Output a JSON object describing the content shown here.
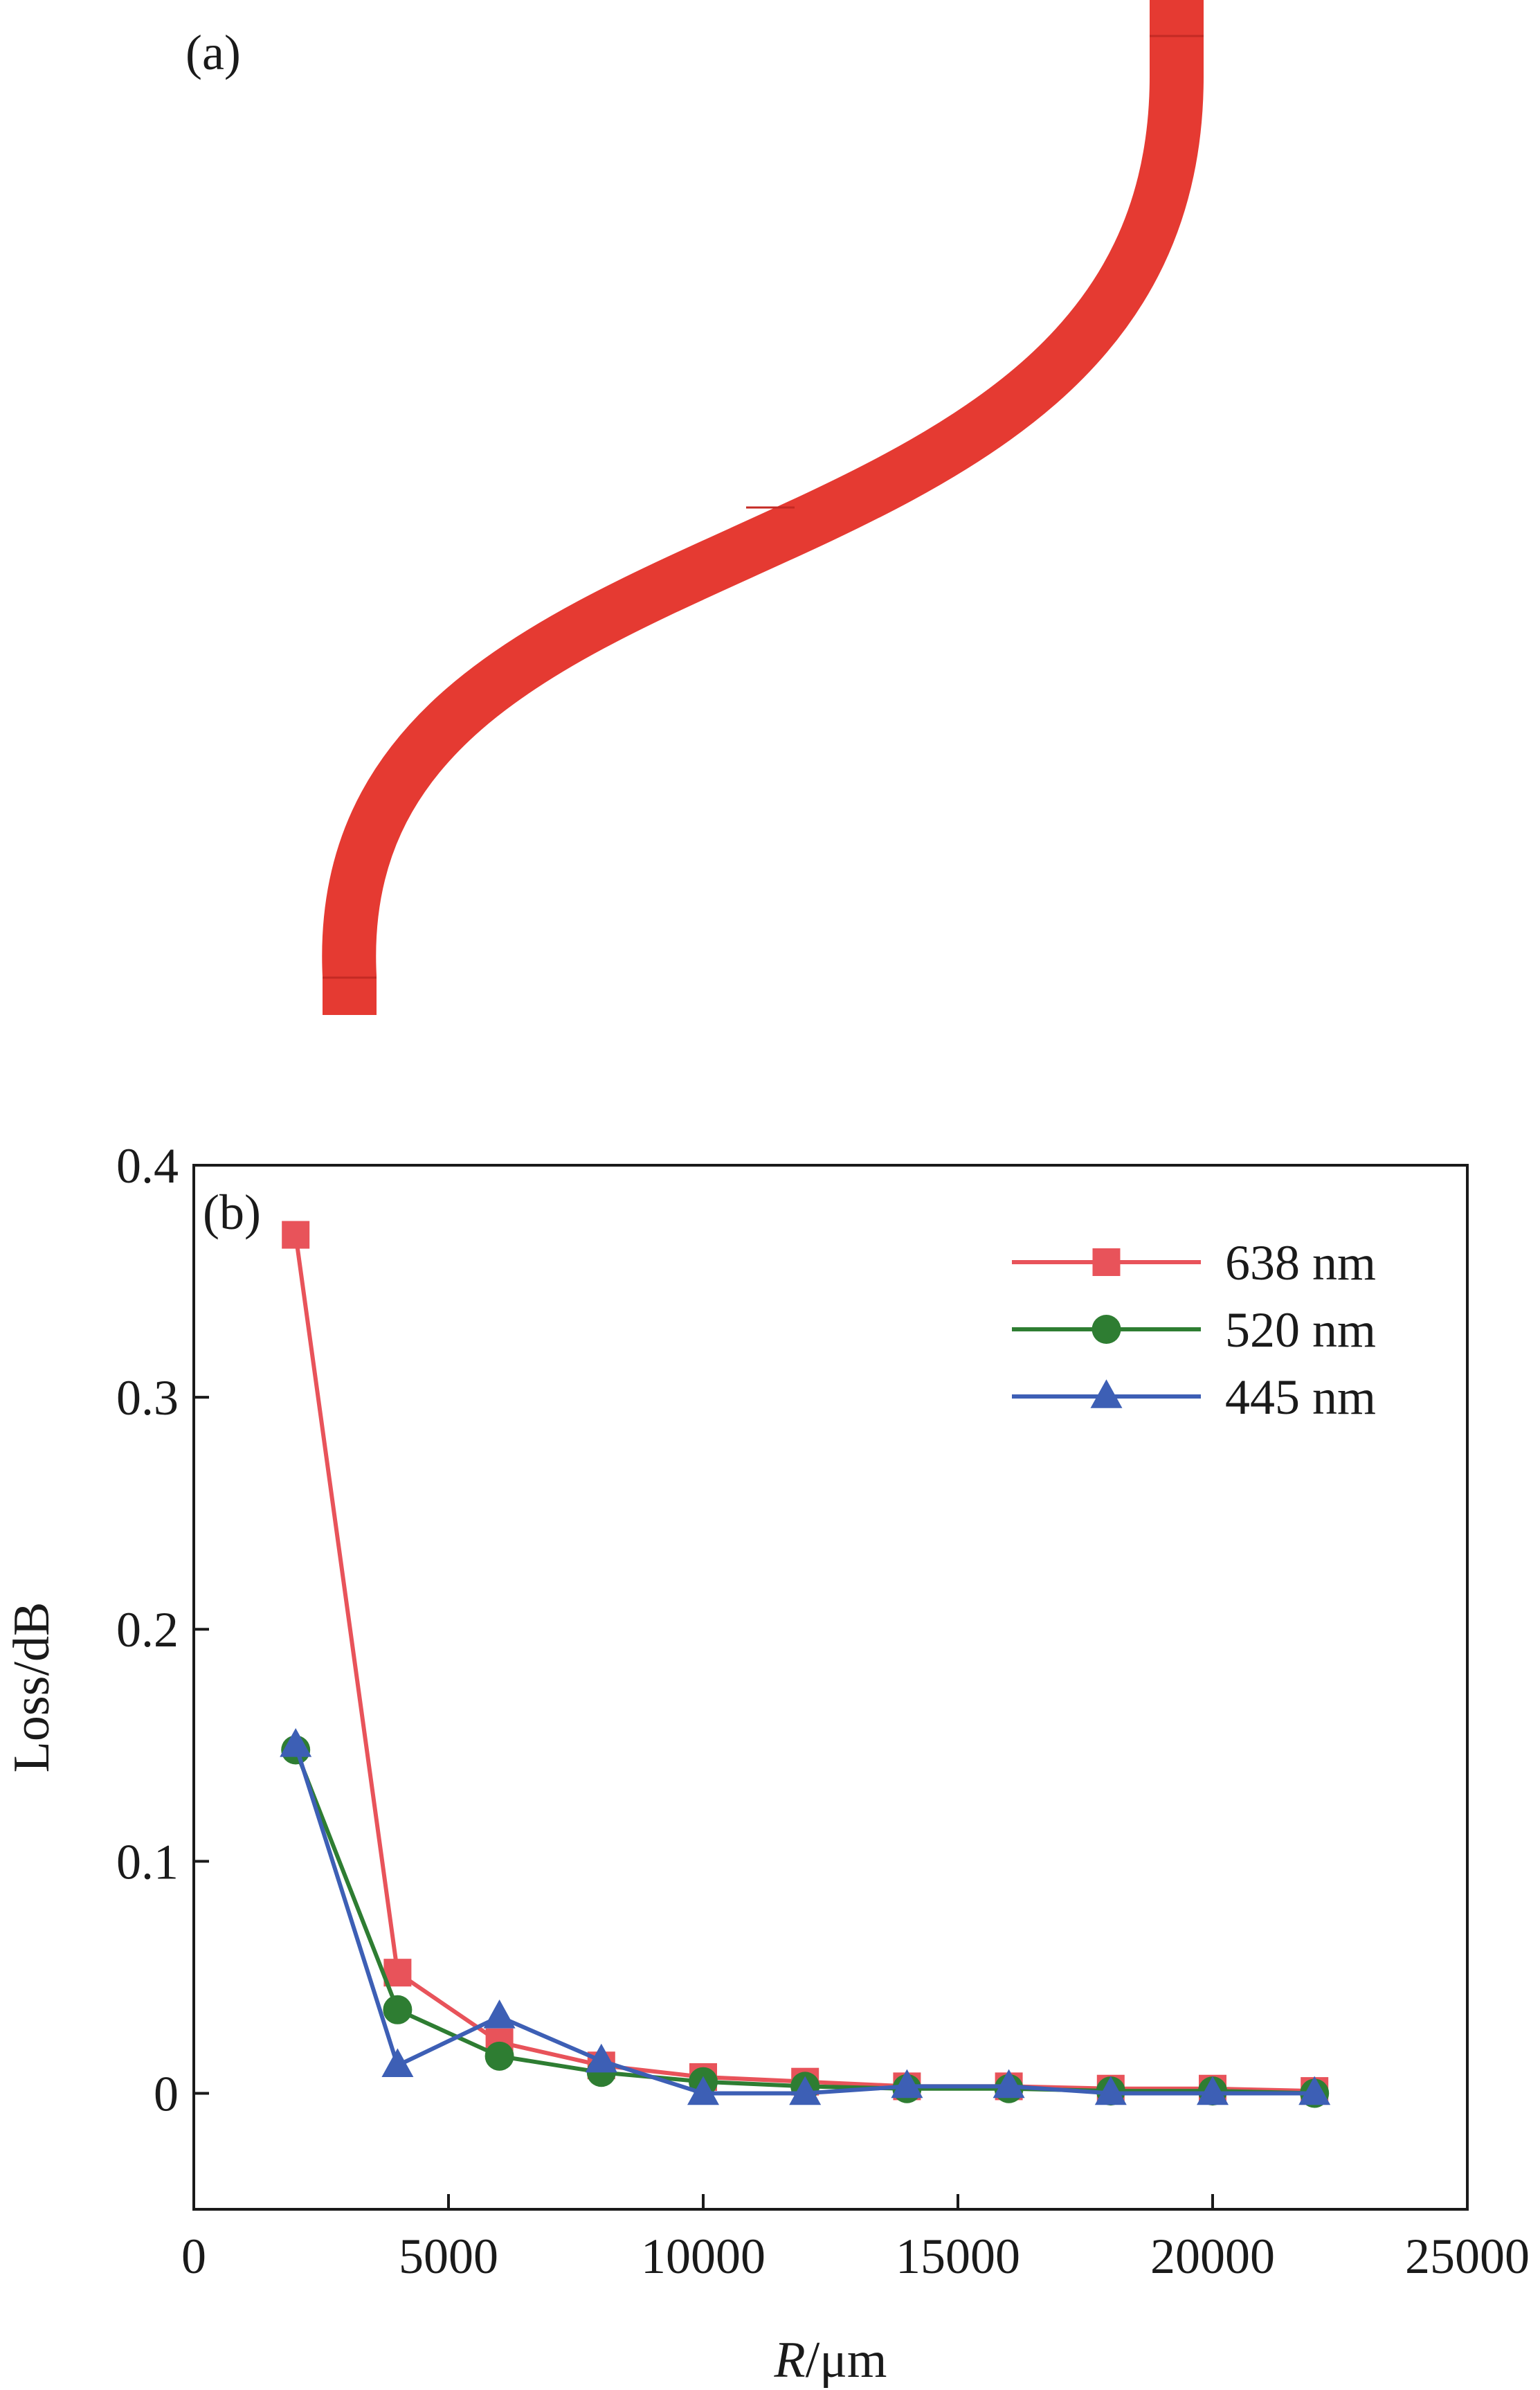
{
  "panel_a": {
    "label": "(a)",
    "waveguide_color": "#e53a32",
    "waveguide_edge_color": "#c42a24"
  },
  "chart_data": {
    "type": "line",
    "panel_label": "(b)",
    "title": "",
    "xlabel_italic": "R",
    "xlabel_rest": "/μm",
    "ylabel": "Loss/dB",
    "xlim": [
      0,
      25000
    ],
    "ylim": [
      -0.05,
      0.4
    ],
    "xticks": [
      0,
      5000,
      10000,
      15000,
      20000,
      25000
    ],
    "xtick_labels": [
      "0",
      "5000",
      "10000",
      "15000",
      "20000",
      "25000"
    ],
    "yticks": [
      0,
      0.1,
      0.2,
      0.3,
      0.4
    ],
    "ytick_labels": [
      "0",
      "0.1",
      "0.2",
      "0.3",
      "0.4"
    ],
    "grid": false,
    "legend_position": "top-right",
    "x": [
      2000,
      4000,
      6000,
      8000,
      10000,
      12000,
      14000,
      16000,
      18000,
      20000,
      22000
    ],
    "series": [
      {
        "name": "638 nm",
        "color": "#e8535a",
        "marker": "square",
        "values": [
          0.37,
          0.052,
          0.022,
          0.012,
          0.007,
          0.005,
          0.003,
          0.003,
          0.002,
          0.002,
          0.001
        ]
      },
      {
        "name": "520 nm",
        "color": "#2e7d32",
        "marker": "circle",
        "values": [
          0.148,
          0.036,
          0.016,
          0.009,
          0.005,
          0.003,
          0.002,
          0.002,
          0.001,
          0.001,
          0.0
        ]
      },
      {
        "name": "445 nm",
        "color": "#3d5fb5",
        "marker": "triangle",
        "values": [
          0.15,
          0.012,
          0.033,
          0.014,
          0.0,
          0.0,
          0.003,
          0.003,
          0.0,
          0.0,
          0.0
        ]
      }
    ]
  }
}
